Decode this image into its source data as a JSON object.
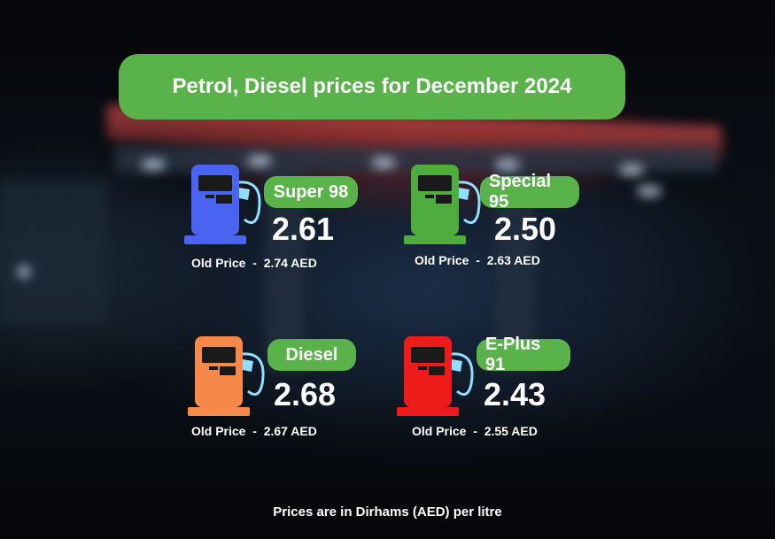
{
  "title": "Petrol, Diesel prices for December 2024",
  "footer": "Prices are in Dirhams (AED) per litre",
  "fuels": [
    {
      "name": "Super 98",
      "price": "2.61",
      "old_price": "Old Price  -  2.74 AED",
      "color": "#4a63f0"
    },
    {
      "name": "Special 95",
      "price": "2.50",
      "old_price": "Old Price  -  2.63 AED",
      "color": "#4fad3f"
    },
    {
      "name": "Diesel",
      "price": "2.68",
      "old_price": "Old Price  -  2.67 AED",
      "color": "#f6894a"
    },
    {
      "name": "E-Plus 91",
      "price": "2.43",
      "old_price": "Old Price  -  2.55 AED",
      "color": "#ee1b1b"
    }
  ],
  "colors": {
    "accent_green": "#5ab24a"
  }
}
